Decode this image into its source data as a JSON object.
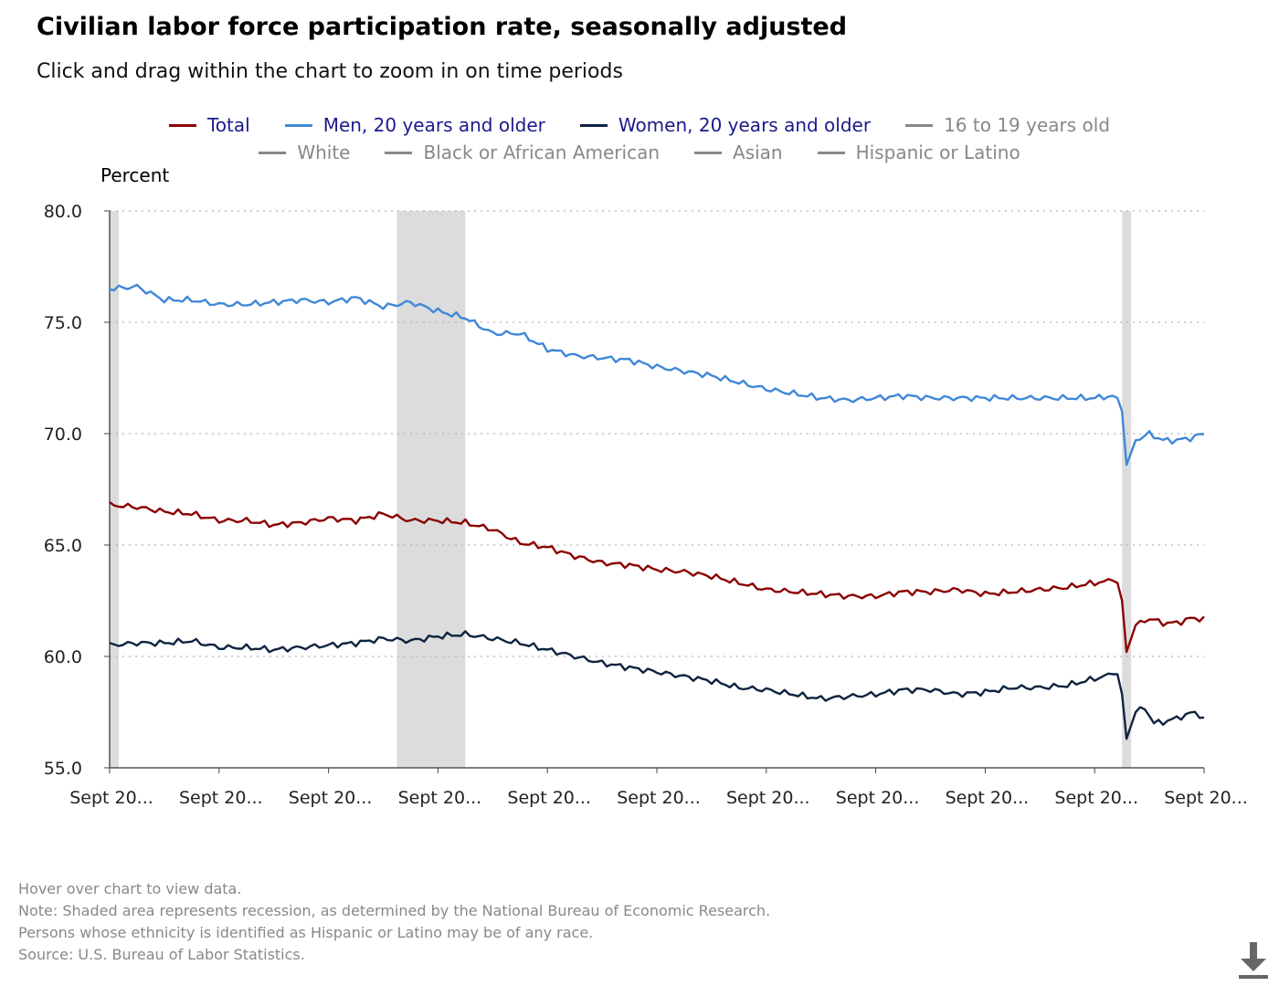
{
  "header": {
    "title": "Civilian labor force participation rate, seasonally adjusted",
    "subtitle": "Click and drag within the chart to zoom in on time periods"
  },
  "legend": {
    "row1": [
      {
        "label": "Total",
        "color": "#8b0000",
        "text_color": "#1a1a8c"
      },
      {
        "label": "Men, 20 years and older",
        "color": "#3f87d8",
        "text_color": "#1a1a8c"
      },
      {
        "label": "Women, 20 years and older",
        "color": "#0e2340",
        "text_color": "#1a1a8c"
      },
      {
        "label": "16 to 19 years old",
        "color": "#888888",
        "text_color": "#888888"
      }
    ],
    "row2": [
      {
        "label": "White",
        "color": "#888888",
        "text_color": "#888888"
      },
      {
        "label": "Black or African American",
        "color": "#888888",
        "text_color": "#888888"
      },
      {
        "label": "Asian",
        "color": "#888888",
        "text_color": "#888888"
      },
      {
        "label": "Hispanic or Latino",
        "color": "#888888",
        "text_color": "#888888"
      }
    ]
  },
  "chart_data": {
    "type": "line",
    "ylabel": "Percent",
    "ylim": [
      55,
      80
    ],
    "yticks": [
      "55.0",
      "60.0",
      "65.0",
      "70.0",
      "75.0",
      "80.0"
    ],
    "xticks": [
      "Sept 20...",
      "Sept 20...",
      "Sept 20...",
      "Sept 20...",
      "Sept 20...",
      "Sept 20...",
      "Sept 20...",
      "Sept 20...",
      "Sept 20...",
      "Sept 20...",
      "Sept 20..."
    ],
    "x_count": 241,
    "grid": "horizontal-dotted",
    "recessions": [
      [
        0,
        2
      ],
      [
        63,
        78
      ],
      [
        222,
        224
      ]
    ],
    "series": [
      {
        "name": "Total",
        "color": "#8b0000",
        "anchors": [
          [
            0,
            66.8
          ],
          [
            6,
            66.7
          ],
          [
            12,
            66.5
          ],
          [
            18,
            66.4
          ],
          [
            24,
            66.1
          ],
          [
            30,
            66.1
          ],
          [
            36,
            65.9
          ],
          [
            42,
            66.0
          ],
          [
            48,
            66.2
          ],
          [
            54,
            66.1
          ],
          [
            60,
            66.4
          ],
          [
            66,
            66.1
          ],
          [
            72,
            66.1
          ],
          [
            78,
            66.0
          ],
          [
            84,
            65.7
          ],
          [
            90,
            65.1
          ],
          [
            96,
            64.9
          ],
          [
            102,
            64.5
          ],
          [
            108,
            64.2
          ],
          [
            114,
            64.1
          ],
          [
            120,
            63.9
          ],
          [
            126,
            63.8
          ],
          [
            132,
            63.6
          ],
          [
            138,
            63.3
          ],
          [
            144,
            63.0
          ],
          [
            150,
            62.9
          ],
          [
            156,
            62.8
          ],
          [
            162,
            62.7
          ],
          [
            168,
            62.7
          ],
          [
            174,
            62.9
          ],
          [
            180,
            62.9
          ],
          [
            186,
            63.0
          ],
          [
            192,
            62.8
          ],
          [
            198,
            62.9
          ],
          [
            204,
            63.0
          ],
          [
            210,
            63.1
          ],
          [
            216,
            63.3
          ],
          [
            220,
            63.4
          ],
          [
            221,
            63.3
          ],
          [
            222,
            62.5
          ],
          [
            223,
            60.2
          ],
          [
            225,
            61.4
          ],
          [
            228,
            61.7
          ],
          [
            231,
            61.5
          ],
          [
            234,
            61.5
          ],
          [
            237,
            61.7
          ],
          [
            240,
            61.7
          ]
        ]
      },
      {
        "name": "Men, 20 years and older",
        "color": "#3f87d8",
        "anchors": [
          [
            0,
            76.5
          ],
          [
            6,
            76.6
          ],
          [
            12,
            76.0
          ],
          [
            18,
            76.0
          ],
          [
            24,
            75.8
          ],
          [
            30,
            75.8
          ],
          [
            36,
            75.9
          ],
          [
            42,
            76.0
          ],
          [
            48,
            75.9
          ],
          [
            54,
            76.1
          ],
          [
            60,
            75.7
          ],
          [
            66,
            75.9
          ],
          [
            72,
            75.5
          ],
          [
            78,
            75.2
          ],
          [
            84,
            74.5
          ],
          [
            90,
            74.5
          ],
          [
            96,
            73.8
          ],
          [
            102,
            73.5
          ],
          [
            108,
            73.4
          ],
          [
            114,
            73.3
          ],
          [
            120,
            73.0
          ],
          [
            126,
            72.8
          ],
          [
            132,
            72.6
          ],
          [
            138,
            72.3
          ],
          [
            144,
            72.0
          ],
          [
            150,
            71.8
          ],
          [
            156,
            71.6
          ],
          [
            162,
            71.5
          ],
          [
            168,
            71.6
          ],
          [
            174,
            71.7
          ],
          [
            180,
            71.6
          ],
          [
            186,
            71.6
          ],
          [
            192,
            71.6
          ],
          [
            198,
            71.6
          ],
          [
            204,
            71.6
          ],
          [
            210,
            71.6
          ],
          [
            216,
            71.6
          ],
          [
            220,
            71.7
          ],
          [
            221,
            71.6
          ],
          [
            222,
            71.0
          ],
          [
            223,
            68.6
          ],
          [
            225,
            69.7
          ],
          [
            228,
            70.0
          ],
          [
            231,
            69.7
          ],
          [
            234,
            69.7
          ],
          [
            237,
            69.8
          ],
          [
            240,
            70.0
          ]
        ]
      },
      {
        "name": "Women, 20 years and older",
        "color": "#0e2340",
        "anchors": [
          [
            0,
            60.5
          ],
          [
            6,
            60.6
          ],
          [
            12,
            60.6
          ],
          [
            18,
            60.7
          ],
          [
            24,
            60.4
          ],
          [
            30,
            60.4
          ],
          [
            36,
            60.3
          ],
          [
            42,
            60.4
          ],
          [
            48,
            60.5
          ],
          [
            54,
            60.6
          ],
          [
            60,
            60.8
          ],
          [
            66,
            60.7
          ],
          [
            72,
            60.9
          ],
          [
            78,
            61.0
          ],
          [
            84,
            60.8
          ],
          [
            90,
            60.6
          ],
          [
            96,
            60.3
          ],
          [
            102,
            60.0
          ],
          [
            108,
            59.7
          ],
          [
            114,
            59.5
          ],
          [
            120,
            59.3
          ],
          [
            126,
            59.1
          ],
          [
            132,
            58.9
          ],
          [
            138,
            58.6
          ],
          [
            144,
            58.5
          ],
          [
            150,
            58.3
          ],
          [
            156,
            58.1
          ],
          [
            162,
            58.2
          ],
          [
            168,
            58.3
          ],
          [
            174,
            58.5
          ],
          [
            180,
            58.5
          ],
          [
            186,
            58.3
          ],
          [
            192,
            58.4
          ],
          [
            198,
            58.6
          ],
          [
            204,
            58.6
          ],
          [
            210,
            58.7
          ],
          [
            216,
            59.0
          ],
          [
            220,
            59.2
          ],
          [
            221,
            59.2
          ],
          [
            222,
            58.3
          ],
          [
            223,
            56.3
          ],
          [
            225,
            57.5
          ],
          [
            227,
            57.7
          ],
          [
            229,
            57.0
          ],
          [
            232,
            57.1
          ],
          [
            235,
            57.3
          ],
          [
            238,
            57.5
          ],
          [
            240,
            57.2
          ]
        ]
      }
    ]
  },
  "footnotes": [
    "Hover over chart to view data.",
    "Note: Shaded area represents recession, as determined by the National Bureau of Economic Research.",
    "Persons whose ethnicity is identified as Hispanic or Latino may be of any race.",
    "Source: U.S. Bureau of Labor Statistics."
  ],
  "download_icon": "download-arrow-icon"
}
